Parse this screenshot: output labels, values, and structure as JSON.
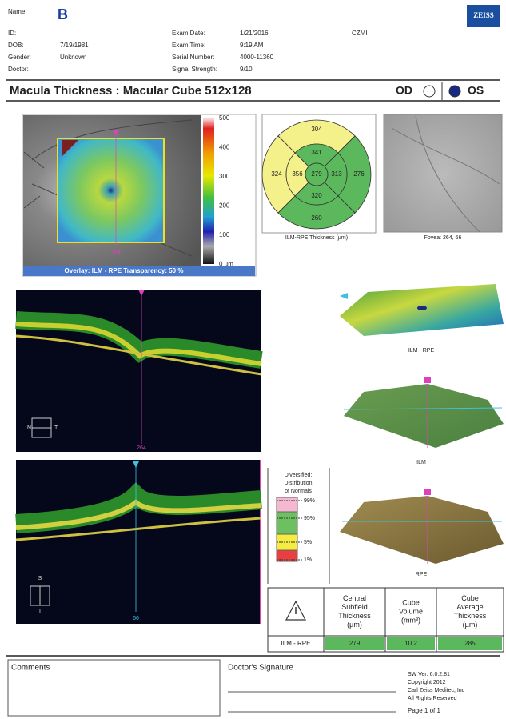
{
  "header": {
    "name_label": "Name:",
    "panel_letter": "B",
    "logo": "ZEISS",
    "site": "CZMI",
    "left_fields": [
      {
        "label": "ID:",
        "value": ""
      },
      {
        "label": "DOB:",
        "value": "7/19/1981"
      },
      {
        "label": "Gender:",
        "value": "Unknown"
      },
      {
        "label": "Doctor:",
        "value": ""
      }
    ],
    "right_fields": [
      {
        "label": "Exam Date:",
        "value": "1/21/2016"
      },
      {
        "label": "Exam Time:",
        "value": "9:19 AM"
      },
      {
        "label": "Serial Number:",
        "value": "4000-11360"
      },
      {
        "label": "Signal Strength:",
        "value": "9/10"
      }
    ]
  },
  "title": "Macula Thickness : Macular Cube 512x128",
  "eye_od": "OD",
  "eye_os": "OS",
  "fundus": {
    "scale_labels": [
      "500",
      "400",
      "300",
      "200",
      "100",
      "0 µm"
    ],
    "marker": "264",
    "overlay_caption": "Overlay: ILM - RPE  Transparency: 50 %"
  },
  "etdrs": {
    "outer_superior": "304",
    "inner_superior": "341",
    "outer_temporal": "324",
    "inner_temporal": "356",
    "center": "279",
    "inner_nasal": "313",
    "outer_nasal": "276",
    "inner_inferior": "320",
    "outer_inferior": "260",
    "caption": "ILM-RPE Thickness (µm)"
  },
  "fovea_caption": "Fovea: 264, 66",
  "bscan_horizontal": {
    "left": "N",
    "right": "T",
    "marker": "264"
  },
  "bscan_vertical": {
    "top": "S",
    "bottom": "I",
    "marker": "66"
  },
  "surfaces": [
    "ILM - RPE",
    "ILM",
    "RPE"
  ],
  "normals_legend": {
    "title": [
      "Diversified:",
      "Distribution",
      "of Normals"
    ],
    "levels": [
      "99%",
      "95%",
      "5%",
      "1%"
    ]
  },
  "table": {
    "headers": [
      [
        "Central",
        "Subfield",
        "Thickness",
        "(µm)"
      ],
      [
        "Cube",
        "Volume",
        "(mm³)"
      ],
      [
        "Cube",
        "Average",
        "Thickness",
        "(µm)"
      ]
    ],
    "row_label": "ILM - RPE",
    "values": [
      "279",
      "10.2",
      "285"
    ]
  },
  "footer": {
    "comments": "Comments",
    "signature": "Doctor's Signature",
    "software": [
      "SW Ver: 6.0.2.81",
      "Copyright 2012",
      "Carl Zeiss Meditec, Inc",
      "All Rights Reserved"
    ],
    "page": "Page 1 of 1"
  }
}
